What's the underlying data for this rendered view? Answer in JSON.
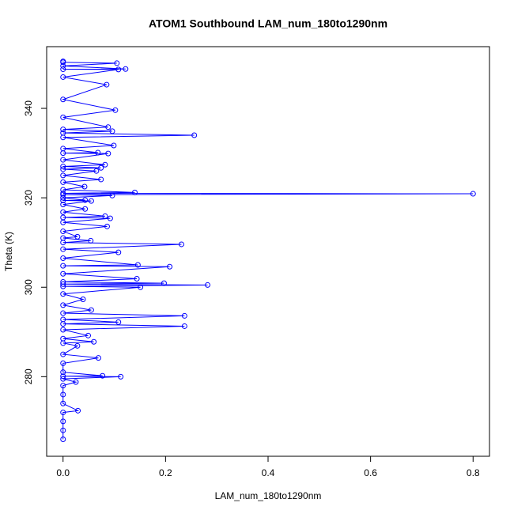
{
  "chart_data": {
    "type": "line",
    "title": "ATOM1 Southbound LAM_num_180to1290nm",
    "x_label": "LAM_num_180to1290nm",
    "y_label": "Theta (K)",
    "color": "#0000ff",
    "markers": true,
    "xlim": [
      -0.032,
      0.832
    ],
    "ylim": [
      262.2,
      353.8
    ],
    "xticks": [
      {
        "value": 0,
        "label": "0.0"
      },
      0.2,
      0.4,
      0.6,
      0.8
    ],
    "yticks": [
      280,
      300,
      320,
      340
    ],
    "x": [
      0,
      0,
      0,
      0,
      0.029,
      0,
      0,
      0,
      0.025,
      0,
      0.1125,
      0,
      0.077,
      0,
      0,
      0.069,
      0,
      0.028,
      0,
      0.06,
      0,
      0.049,
      0,
      0.237,
      0,
      0.108,
      0,
      0.237,
      0,
      0.055,
      0,
      0.039,
      0,
      0.151,
      0,
      0.282,
      0,
      0.197,
      0,
      0.144,
      0,
      0.208,
      0,
      0.146,
      0,
      0.108,
      0,
      0.231,
      0,
      0.054,
      0,
      0.028,
      0,
      0.086,
      0,
      0.092,
      0,
      0.082,
      0,
      0.043,
      0,
      0.055,
      0,
      0.043,
      0,
      0.096,
      0,
      0.8,
      0,
      0.14,
      0,
      0.042,
      0,
      0.074,
      0,
      0.065,
      0,
      0.074,
      0,
      0.082,
      0,
      0.088,
      0,
      0.068,
      0,
      0.099,
      0,
      0.256,
      0,
      0.096,
      0,
      0.088,
      0,
      0.102,
      0,
      0.085,
      0,
      0.108,
      0,
      0.122,
      0,
      0.105,
      0,
      0
    ],
    "y": [
      266,
      268,
      270,
      272,
      272.4,
      274,
      276,
      278,
      278.8,
      279.5,
      280,
      280.1,
      280.2,
      281,
      283,
      284.2,
      285,
      286.9,
      287.5,
      287.8,
      288.5,
      289.2,
      290.5,
      291.3,
      291.8,
      292.2,
      292.8,
      293.6,
      294.2,
      294.9,
      296,
      297.3,
      298.5,
      300,
      300.2,
      300.5,
      300.7,
      300.9,
      301.2,
      301.9,
      303,
      304.6,
      304.8,
      305,
      306.5,
      307.8,
      308.5,
      309.6,
      310,
      310.4,
      311,
      311.3,
      312.5,
      313.6,
      314.5,
      315.4,
      315.6,
      315.9,
      316.8,
      317.5,
      318.5,
      319.3,
      319.4,
      319.5,
      320,
      320.5,
      320.7,
      320.9,
      321,
      321.2,
      321.8,
      322.5,
      323.5,
      324.1,
      325,
      326,
      326.4,
      326.7,
      327,
      327.4,
      328.5,
      329.9,
      330,
      330.1,
      331,
      331.7,
      333.5,
      334,
      334.5,
      334.9,
      335.3,
      335.8,
      338,
      339.6,
      342,
      345.3,
      347,
      348.7,
      348.75,
      348.8,
      349.5,
      350.1,
      350.3,
      350.5
    ]
  }
}
